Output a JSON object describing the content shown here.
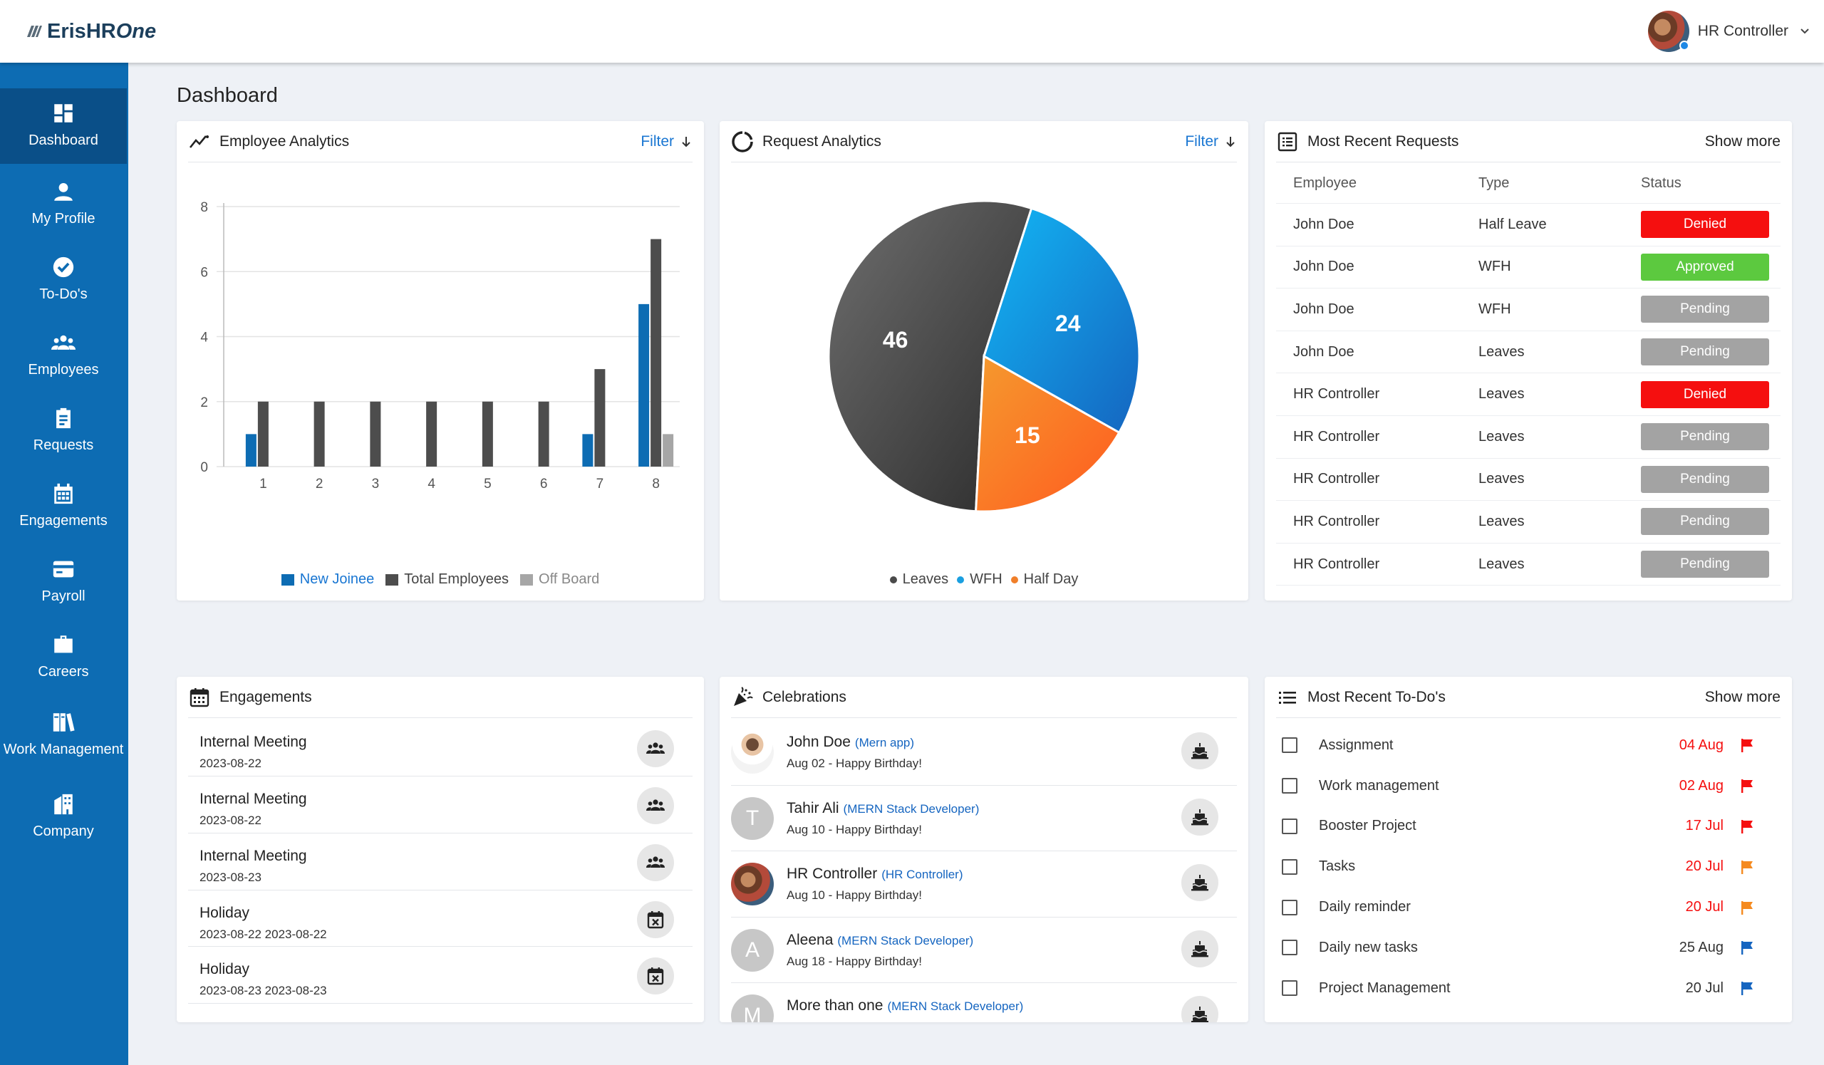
{
  "app": {
    "logo_text": "ErisHR",
    "logo_accent": "One"
  },
  "user": {
    "name": "HR Controller"
  },
  "page_title": "Dashboard",
  "sidebar": {
    "items": [
      {
        "label": "Dashboard",
        "icon": "dashboard-icon",
        "active": true
      },
      {
        "label": "My Profile",
        "icon": "person-icon"
      },
      {
        "label": "To-Do's",
        "icon": "todo-icon"
      },
      {
        "label": "Employees",
        "icon": "group-icon"
      },
      {
        "label": "Requests",
        "icon": "clipboard-icon"
      },
      {
        "label": "Engagements",
        "icon": "calendar-icon"
      },
      {
        "label": "Payroll",
        "icon": "card-icon"
      },
      {
        "label": "Careers",
        "icon": "briefcase-icon"
      },
      {
        "label": "Work Management",
        "icon": "books-icon"
      },
      {
        "label": "Company",
        "icon": "building-icon"
      }
    ]
  },
  "employee_analytics": {
    "title": "Employee Analytics",
    "filter_label": "Filter",
    "legend": [
      "New Joinee",
      "Total Employees",
      "Off Board"
    ],
    "colors": {
      "new_joinee": "#0d6cb3",
      "total": "#4d4d4d",
      "off_board": "#a6a6a6"
    }
  },
  "request_analytics": {
    "title": "Request Analytics",
    "filter_label": "Filter",
    "legend": [
      "Leaves",
      "WFH",
      "Half Day"
    ],
    "colors": {
      "Leaves": "#4a4a4a",
      "WFH": "#1a9fe0",
      "Half Day": "#f07f2a"
    }
  },
  "recent_requests": {
    "title": "Most Recent Requests",
    "show_more": "Show more",
    "columns": [
      "Employee",
      "Type",
      "Status"
    ],
    "rows": [
      {
        "employee": "John Doe",
        "type": "Half Leave",
        "status": "Denied"
      },
      {
        "employee": "John Doe",
        "type": "WFH",
        "status": "Approved"
      },
      {
        "employee": "John Doe",
        "type": "WFH",
        "status": "Pending"
      },
      {
        "employee": "John Doe",
        "type": "Leaves",
        "status": "Pending"
      },
      {
        "employee": "HR Controller",
        "type": "Leaves",
        "status": "Denied"
      },
      {
        "employee": "HR Controller",
        "type": "Leaves",
        "status": "Pending"
      },
      {
        "employee": "HR Controller",
        "type": "Leaves",
        "status": "Pending"
      },
      {
        "employee": "HR Controller",
        "type": "Leaves",
        "status": "Pending"
      },
      {
        "employee": "HR Controller",
        "type": "Leaves",
        "status": "Pending"
      }
    ],
    "status_colors": {
      "Denied": "#f50f0f",
      "Approved": "#5cc93f",
      "Pending": "#a3a3a3"
    }
  },
  "engagements": {
    "title": "Engagements",
    "items": [
      {
        "title": "Internal Meeting",
        "date": "2023-08-22",
        "icon": "group-icon"
      },
      {
        "title": "Internal Meeting",
        "date": "2023-08-22",
        "icon": "group-icon"
      },
      {
        "title": "Internal Meeting",
        "date": "2023-08-23",
        "icon": "group-icon"
      },
      {
        "title": "Holiday",
        "date": "2023-08-22 2023-08-22",
        "icon": "calendar-x-icon"
      },
      {
        "title": "Holiday",
        "date": "2023-08-23 2023-08-23",
        "icon": "calendar-x-icon"
      }
    ]
  },
  "celebrations": {
    "title": "Celebrations",
    "items": [
      {
        "name": "John Doe",
        "role": "(Mern app)",
        "sub": "Aug 02 - Happy Birthday!",
        "avatar": "photo",
        "initial": ""
      },
      {
        "name": "Tahir Ali",
        "role": "(MERN Stack Developer)",
        "sub": "Aug 10 - Happy Birthday!",
        "avatar": "letter",
        "initial": "T"
      },
      {
        "name": "HR Controller",
        "role": "(HR Controller)",
        "sub": "Aug 10 - Happy Birthday!",
        "avatar": "photo",
        "initial": ""
      },
      {
        "name": "Aleena",
        "role": "(MERN Stack Developer)",
        "sub": "Aug 18 - Happy Birthday!",
        "avatar": "letter",
        "initial": "A"
      },
      {
        "name": "More than one",
        "role": "(MERN Stack Developer)",
        "sub": "",
        "avatar": "letter",
        "initial": "M"
      }
    ]
  },
  "recent_todos": {
    "title": "Most Recent To-Do's",
    "show_more": "Show more",
    "items": [
      {
        "label": "Assignment",
        "date": "04 Aug",
        "priority": "red"
      },
      {
        "label": "Work management",
        "date": "02 Aug",
        "priority": "red"
      },
      {
        "label": "Booster Project",
        "date": "17 Jul",
        "priority": "red"
      },
      {
        "label": "Tasks",
        "date": "20 Jul",
        "priority": "orange"
      },
      {
        "label": "Daily reminder",
        "date": "20 Jul",
        "priority": "orange"
      },
      {
        "label": "Daily new tasks",
        "date": "25 Aug",
        "priority": "blue"
      },
      {
        "label": "Project Management",
        "date": "20 Jul",
        "priority": "blue"
      }
    ],
    "date_colors": {
      "red": "#f50f0f",
      "orange": "#f50f0f",
      "blue": "#333333"
    },
    "flag_colors": {
      "red": "#f50f0f",
      "orange": "#f58a1f",
      "blue": "#1565c0"
    }
  },
  "chart_data": [
    {
      "type": "bar",
      "categories": [
        "1",
        "2",
        "3",
        "4",
        "5",
        "6",
        "7",
        "8"
      ],
      "series": [
        {
          "name": "New Joinee",
          "values": [
            1,
            0,
            0,
            0,
            0,
            0,
            1,
            5
          ]
        },
        {
          "name": "Total Employees",
          "values": [
            2,
            2,
            2,
            2,
            2,
            2,
            3,
            7
          ]
        },
        {
          "name": "Off Board",
          "values": [
            0,
            0,
            0,
            0,
            0,
            0,
            0,
            1
          ]
        }
      ],
      "yticks": [
        0,
        2,
        4,
        6,
        8
      ],
      "ylim": [
        0,
        8
      ],
      "grid": true,
      "legend_position": "bottom"
    },
    {
      "type": "pie",
      "categories": [
        "Leaves",
        "WFH",
        "Half Day"
      ],
      "values": [
        46,
        24,
        15
      ],
      "data_labels": true,
      "legend_position": "bottom"
    }
  ]
}
